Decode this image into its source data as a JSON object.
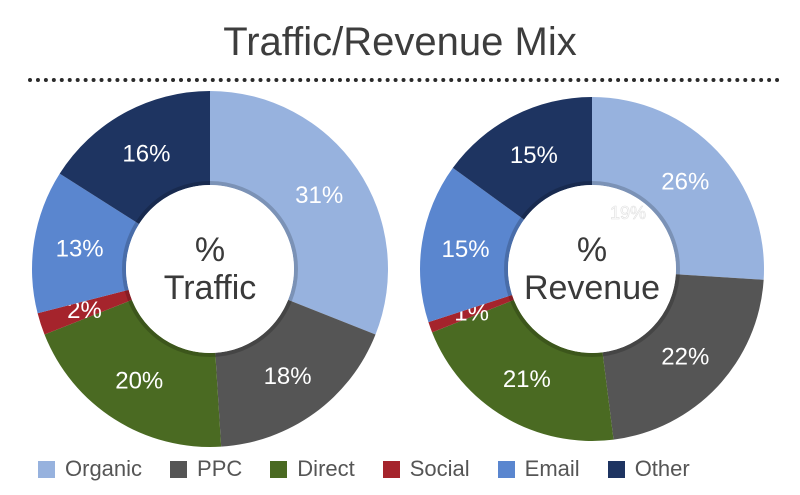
{
  "title": "Traffic/Revenue Mix",
  "legend": [
    {
      "label": "Organic",
      "color": "#97b2de"
    },
    {
      "label": "PPC",
      "color": "#555555"
    },
    {
      "label": "Direct",
      "color": "#4a6a22"
    },
    {
      "label": "Social",
      "color": "#a5242c"
    },
    {
      "label": "Email",
      "color": "#5a86cf"
    },
    {
      "label": "Other",
      "color": "#1e3461"
    }
  ],
  "chart_data": [
    {
      "type": "pie",
      "center_label": [
        "%",
        "Traffic"
      ],
      "categories": [
        "Organic",
        "PPC",
        "Direct",
        "Social",
        "Email",
        "Other"
      ],
      "values": [
        31,
        18,
        20,
        2,
        13,
        16
      ],
      "labels": [
        "31%",
        "18%",
        "20%",
        "2%",
        "13%",
        "16%"
      ]
    },
    {
      "type": "pie",
      "center_label": [
        "%",
        "Revenue"
      ],
      "categories": [
        "Organic",
        "PPC",
        "Direct",
        "Social",
        "Email",
        "Other"
      ],
      "values": [
        26,
        22,
        21,
        1,
        15,
        15
      ],
      "labels": [
        "26%",
        "22%",
        "21%",
        "1%",
        "15%",
        "15%"
      ],
      "annotations": [
        "19%"
      ]
    }
  ]
}
